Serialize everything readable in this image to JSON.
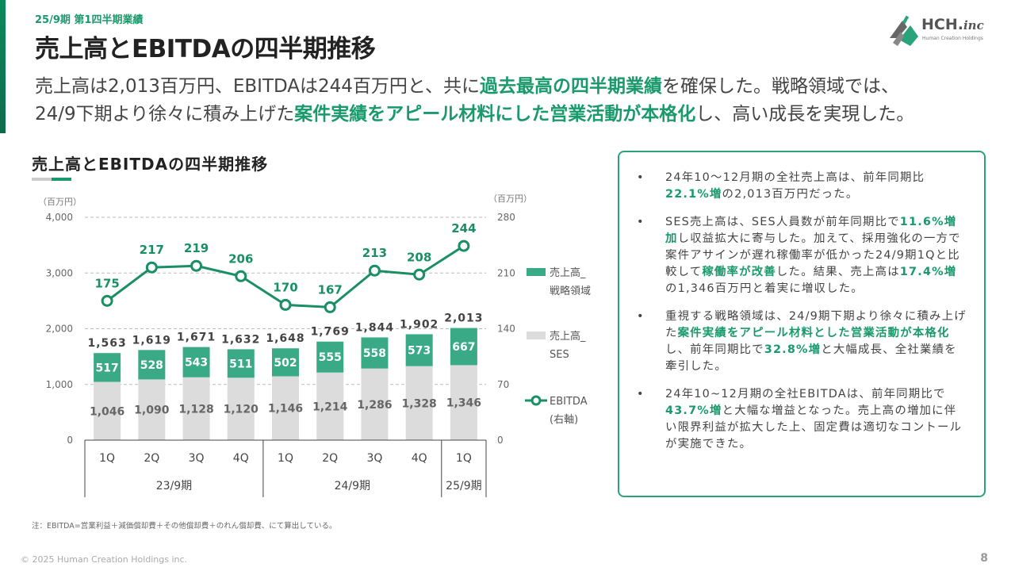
{
  "header": {
    "subtitle": "25/9期 第1四半期業績",
    "title": "売上高とEBITDAの四半期推移",
    "logo_text": "HCH.",
    "logo_text_italic": "inc",
    "logo_sub": "Human Creation Holdings"
  },
  "lead": {
    "l1a": "売上高は2,013百万円、EBITDAは244百万円と、共に",
    "l1b": "過去最高の四半期業績",
    "l1c": "を確保した。戦略領域では、",
    "l2a": "24/9下期より徐々に積み上げた",
    "l2b": "案件実績をアピール材料にした営業活動が本格化",
    "l2c": "し、高い成長を実現した。"
  },
  "chart_title": "売上高とEBITDAの四半期推移",
  "chart_data": {
    "type": "bar",
    "stacked": true,
    "categories": [
      "1Q",
      "2Q",
      "3Q",
      "4Q",
      "1Q",
      "2Q",
      "3Q",
      "4Q",
      "1Q"
    ],
    "groups": [
      {
        "label": "23/9期",
        "count": 4
      },
      {
        "label": "24/9期",
        "count": 4
      },
      {
        "label": "25/9期",
        "count": 1
      }
    ],
    "series": [
      {
        "name": "売上高_SES",
        "values": [
          1046,
          1090,
          1128,
          1120,
          1146,
          1214,
          1286,
          1328,
          1346
        ],
        "color": "#dcdcdc"
      },
      {
        "name": "売上高_戦略領域",
        "values": [
          517,
          528,
          543,
          511,
          502,
          555,
          558,
          573,
          667
        ],
        "color": "#3aaa86"
      }
    ],
    "totals": [
      1563,
      1619,
      1671,
      1632,
      1648,
      1769,
      1844,
      1902,
      2013
    ],
    "totals_labels": [
      "1,563",
      "1,619",
      "1,671",
      "1,632",
      "1,648",
      "1,769",
      "1,844",
      "1,902",
      "2,013"
    ],
    "ses_labels": [
      "1,046",
      "1,090",
      "1,128",
      "1,120",
      "1,146",
      "1,214",
      "1,286",
      "1,328",
      "1,346"
    ],
    "line": {
      "name": "EBITDA",
      "values": [
        175,
        217,
        219,
        206,
        170,
        167,
        213,
        208,
        244
      ],
      "color": "#1a8f63"
    },
    "y_left": {
      "label": "（百万円）",
      "min": 0,
      "max": 4000,
      "ticks": [
        0,
        1000,
        2000,
        3000,
        4000
      ],
      "tick_labels": [
        "0",
        "1,000",
        "2,000",
        "3,000",
        "4,000"
      ]
    },
    "y_right": {
      "label": "（百万円）",
      "min": 0,
      "max": 280,
      "ticks": [
        0,
        70,
        140,
        210,
        280
      ]
    },
    "legend": [
      {
        "line1": "売上高_",
        "line2": "戦略領域",
        "kind": "box",
        "color": "#3aaa86"
      },
      {
        "line1": "売上高_",
        "line2": "SES",
        "kind": "box",
        "color": "#dcdcdc"
      },
      {
        "line1": "EBITDA",
        "line2": "(右軸)",
        "kind": "line",
        "color": "#1a8f63"
      }
    ],
    "legend_placement": "right",
    "grid": true
  },
  "summary": {
    "b1": [
      "24年10～12月期の全社売上高は、前年同期比",
      "22.1%増",
      "の2,013百万円だった。"
    ],
    "b2": [
      "SES売上高は、SES人員数が前年同期比で",
      "11.6%増加",
      "し収益拡大に寄与した。加えて、採用強化の一方で案件アサインが遅れ稼働率が低かった24/9期1Qと比較して",
      "稼働率が改善",
      "した。結果、売上高は",
      "17.4%増",
      "の1,346百万円と着実に増収した。"
    ],
    "b3": [
      "重視する戦略領域は、24/9期下期より徐々に積み上げた",
      "案件実績をアピール材料とした営業活動が本格化",
      "し、前年同期比で",
      "32.8%増",
      "と大幅成長、全社業績を牽引した。"
    ],
    "b4": [
      "24年10~12月期の全社EBITDAは、前年同期比で",
      "43.7%増",
      "と大幅な増益となった。売上高の増加に伴い限界利益が拡大した上、固定費は適切なコントールが実施できた。"
    ]
  },
  "note": "注：EBITDA=営業利益＋減価償却費＋その他償却費＋のれん償却費、にて算出している。",
  "copyright": "© 2025 Human Creation Holdings inc.",
  "page_number": "8",
  "colors": {
    "accent": "#1a9a6c",
    "strategic": "#3aaa86",
    "ses": "#dcdcdc",
    "ebitda": "#1a8f63"
  }
}
